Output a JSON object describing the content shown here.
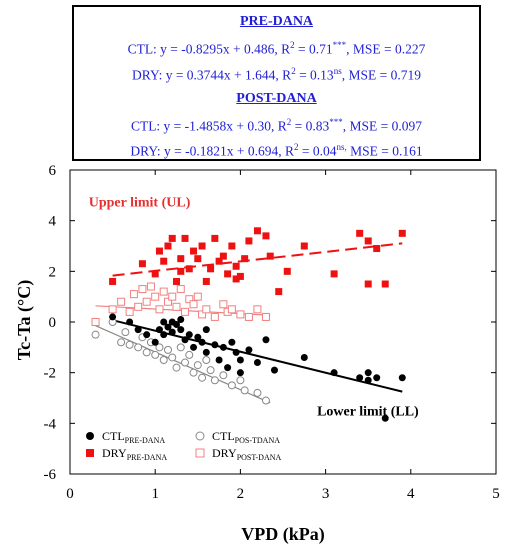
{
  "equations": {
    "pre_heading": "PRE-DANA",
    "post_heading": "POST-DANA",
    "rows": [
      {
        "prefix": "CTL: y = -0.8295x + 0.486, R",
        "sup1": "2",
        "mid": " = 0.71",
        "sup2": "***",
        "suffix": ", MSE = 0.227"
      },
      {
        "prefix": "DRY: y = 0.3744x + 1.644, R",
        "sup1": "2",
        "mid": " = 0.13",
        "sup2": "ns",
        "suffix": ", MSE = 0.719"
      },
      {
        "prefix": "CTL: y = -1.4858x + 0.30, R",
        "sup1": "2",
        "mid": " = 0.83",
        "sup2": "***",
        "suffix": ", MSE = 0.097"
      },
      {
        "prefix": "DRY: y = -0.1821x + 0.694, R",
        "sup1": "2",
        "mid": " = 0.04",
        "sup2": "ns,",
        "suffix": " MSE = 0.161"
      }
    ]
  },
  "chart_data": {
    "type": "scatter",
    "xlabel": "VPD (kPa)",
    "ylabel": "Tc-Ta (°C)",
    "xlim": [
      0,
      5
    ],
    "ylim": [
      -6,
      6
    ],
    "xticks": [
      0,
      1,
      2,
      3,
      4,
      5
    ],
    "yticks": [
      -6,
      -4,
      -2,
      0,
      2,
      4,
      6
    ],
    "annotations": [
      {
        "text": "Upper limit (UL)",
        "x": 0.22,
        "y": 4.55,
        "color": "#e53030"
      },
      {
        "text": "Lower limit (LL)",
        "x": 2.9,
        "y": -3.7,
        "color": "#000000"
      }
    ],
    "legend": {
      "placement": "bottom-left",
      "entries": [
        {
          "series": "ctl_pre",
          "base": "CTL",
          "sub": "PRE-DANA"
        },
        {
          "series": "ctl_post",
          "base": "CTL",
          "sub": "POS-TDANA"
        },
        {
          "series": "dry_pre",
          "base": "DRY",
          "sub": "PRE-DANA"
        },
        {
          "series": "dry_post",
          "base": "DRY",
          "sub": "POST-DANA"
        }
      ]
    },
    "series": [
      {
        "id": "ctl_pre",
        "marker": "circle-filled",
        "color": "#000000",
        "fit": {
          "x": [
            0.5,
            3.9
          ],
          "slope": -0.8295,
          "intercept": 0.486,
          "dash": false
        },
        "points": [
          [
            0.5,
            0.2
          ],
          [
            0.7,
            0.0
          ],
          [
            0.8,
            -0.3
          ],
          [
            0.9,
            -0.5
          ],
          [
            1.0,
            -0.8
          ],
          [
            1.05,
            -0.3
          ],
          [
            1.1,
            -0.5
          ],
          [
            1.1,
            0.0
          ],
          [
            1.15,
            -0.2
          ],
          [
            1.2,
            -0.4
          ],
          [
            1.2,
            0.0
          ],
          [
            1.25,
            -0.1
          ],
          [
            1.3,
            0.1
          ],
          [
            1.3,
            -0.3
          ],
          [
            1.35,
            -0.7
          ],
          [
            1.4,
            -0.5
          ],
          [
            1.45,
            -1.0
          ],
          [
            1.5,
            -0.6
          ],
          [
            1.55,
            -0.8
          ],
          [
            1.6,
            -1.2
          ],
          [
            1.6,
            -0.3
          ],
          [
            1.7,
            -0.9
          ],
          [
            1.75,
            -1.5
          ],
          [
            1.8,
            -1.0
          ],
          [
            1.85,
            -1.8
          ],
          [
            1.9,
            -0.8
          ],
          [
            1.95,
            -1.2
          ],
          [
            2.0,
            -2.0
          ],
          [
            2.0,
            -1.5
          ],
          [
            2.1,
            -1.1
          ],
          [
            2.2,
            -1.6
          ],
          [
            2.3,
            -0.7
          ],
          [
            2.4,
            -1.9
          ],
          [
            2.75,
            -1.4
          ],
          [
            3.1,
            -2.0
          ],
          [
            3.4,
            -2.2
          ],
          [
            3.5,
            -2.0
          ],
          [
            3.5,
            -2.3
          ],
          [
            3.6,
            -2.2
          ],
          [
            3.7,
            -3.8
          ],
          [
            3.9,
            -2.2
          ]
        ]
      },
      {
        "id": "ctl_post",
        "marker": "circle-open",
        "color": "#888888",
        "fit": {
          "x": [
            0.3,
            2.35
          ],
          "slope": -1.4858,
          "intercept": 0.3,
          "dash": false
        },
        "points": [
          [
            0.3,
            -0.5
          ],
          [
            0.5,
            0.0
          ],
          [
            0.6,
            -0.8
          ],
          [
            0.65,
            -0.4
          ],
          [
            0.7,
            -0.9
          ],
          [
            0.8,
            -1.0
          ],
          [
            0.85,
            -0.6
          ],
          [
            0.9,
            -1.2
          ],
          [
            0.95,
            -0.8
          ],
          [
            1.0,
            -1.3
          ],
          [
            1.05,
            -1.0
          ],
          [
            1.1,
            -1.5
          ],
          [
            1.15,
            -1.1
          ],
          [
            1.2,
            -1.4
          ],
          [
            1.25,
            -1.8
          ],
          [
            1.3,
            -1.0
          ],
          [
            1.35,
            -1.6
          ],
          [
            1.4,
            -1.3
          ],
          [
            1.45,
            -2.0
          ],
          [
            1.5,
            -1.7
          ],
          [
            1.55,
            -2.2
          ],
          [
            1.6,
            -1.5
          ],
          [
            1.65,
            -1.9
          ],
          [
            1.7,
            -2.3
          ],
          [
            1.8,
            -2.1
          ],
          [
            1.9,
            -2.5
          ],
          [
            2.0,
            -2.3
          ],
          [
            2.05,
            -2.7
          ],
          [
            2.2,
            -2.8
          ],
          [
            2.3,
            -3.1
          ]
        ]
      },
      {
        "id": "dry_pre",
        "marker": "square-filled",
        "color": "#ee1111",
        "fit": {
          "x": [
            0.5,
            3.9
          ],
          "slope": 0.3744,
          "intercept": 1.644,
          "dash": true
        },
        "points": [
          [
            0.5,
            1.6
          ],
          [
            0.85,
            2.3
          ],
          [
            1.0,
            1.9
          ],
          [
            1.05,
            2.8
          ],
          [
            1.1,
            2.4
          ],
          [
            1.15,
            3.0
          ],
          [
            1.2,
            3.3
          ],
          [
            1.25,
            1.6
          ],
          [
            1.3,
            2.5
          ],
          [
            1.3,
            2.0
          ],
          [
            1.35,
            3.3
          ],
          [
            1.4,
            2.1
          ],
          [
            1.45,
            2.8
          ],
          [
            1.5,
            2.5
          ],
          [
            1.55,
            3.0
          ],
          [
            1.6,
            1.6
          ],
          [
            1.65,
            2.1
          ],
          [
            1.7,
            3.3
          ],
          [
            1.75,
            2.4
          ],
          [
            1.8,
            2.6
          ],
          [
            1.85,
            1.9
          ],
          [
            1.9,
            3.0
          ],
          [
            1.95,
            1.7
          ],
          [
            1.95,
            2.2
          ],
          [
            2.0,
            1.8
          ],
          [
            2.05,
            2.5
          ],
          [
            2.1,
            3.2
          ],
          [
            2.2,
            3.6
          ],
          [
            2.3,
            3.4
          ],
          [
            2.35,
            2.6
          ],
          [
            2.45,
            1.2
          ],
          [
            2.55,
            2.0
          ],
          [
            2.75,
            3.0
          ],
          [
            3.1,
            1.9
          ],
          [
            3.4,
            3.5
          ],
          [
            3.5,
            3.2
          ],
          [
            3.5,
            1.5
          ],
          [
            3.6,
            2.9
          ],
          [
            3.7,
            1.5
          ],
          [
            3.9,
            3.5
          ]
        ]
      },
      {
        "id": "dry_post",
        "marker": "square-open",
        "color": "#f08080",
        "fit": {
          "x": [
            0.3,
            2.35
          ],
          "slope": -0.1821,
          "intercept": 0.694,
          "dash": false
        },
        "points": [
          [
            0.3,
            0.0
          ],
          [
            0.5,
            0.5
          ],
          [
            0.6,
            0.8
          ],
          [
            0.7,
            0.4
          ],
          [
            0.75,
            1.1
          ],
          [
            0.8,
            0.6
          ],
          [
            0.85,
            1.3
          ],
          [
            0.9,
            0.8
          ],
          [
            0.95,
            1.4
          ],
          [
            1.0,
            1.0
          ],
          [
            1.05,
            0.5
          ],
          [
            1.1,
            1.2
          ],
          [
            1.15,
            0.8
          ],
          [
            1.2,
            1.0
          ],
          [
            1.25,
            0.6
          ],
          [
            1.3,
            1.3
          ],
          [
            1.35,
            0.4
          ],
          [
            1.4,
            0.9
          ],
          [
            1.45,
            0.7
          ],
          [
            1.5,
            1.0
          ],
          [
            1.55,
            0.3
          ],
          [
            1.6,
            0.5
          ],
          [
            1.7,
            0.2
          ],
          [
            1.8,
            0.7
          ],
          [
            1.85,
            0.4
          ],
          [
            1.9,
            0.5
          ],
          [
            2.0,
            0.3
          ],
          [
            2.1,
            0.2
          ],
          [
            2.2,
            0.5
          ],
          [
            2.3,
            0.2
          ]
        ]
      }
    ]
  }
}
